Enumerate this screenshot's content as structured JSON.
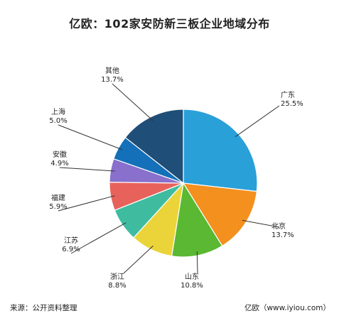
{
  "chart_data": {
    "type": "pie",
    "title": "亿欧：102家安防新三板企业地域分布",
    "slices": [
      {
        "name": "广东",
        "label": "25.5%",
        "value": 25.5,
        "color": "#2aa0d8"
      },
      {
        "name": "北京",
        "label": "13.7%",
        "value": 13.7,
        "color": "#f4901e"
      },
      {
        "name": "山东",
        "label": "10.8%",
        "value": 10.8,
        "color": "#5ab832"
      },
      {
        "name": "浙江",
        "label": "8.8%",
        "value": 8.8,
        "color": "#ebd43a"
      },
      {
        "name": "江苏",
        "label": "6.9%",
        "value": 6.9,
        "color": "#3fbca0"
      },
      {
        "name": "福建",
        "label": "5.9%",
        "value": 5.9,
        "color": "#e8625c"
      },
      {
        "name": "安徽",
        "label": "4.9%",
        "value": 4.9,
        "color": "#8870cc"
      },
      {
        "name": "上海",
        "label": "5.0%",
        "value": 5.0,
        "color": "#1470b8"
      },
      {
        "name": "其他",
        "label": "13.7%",
        "value": 13.7,
        "color": "#1f4e78"
      }
    ],
    "legend": "none"
  },
  "footer": {
    "source": "来源：公开资料整理",
    "credit": "亿欧（www.iyiou.com）"
  }
}
